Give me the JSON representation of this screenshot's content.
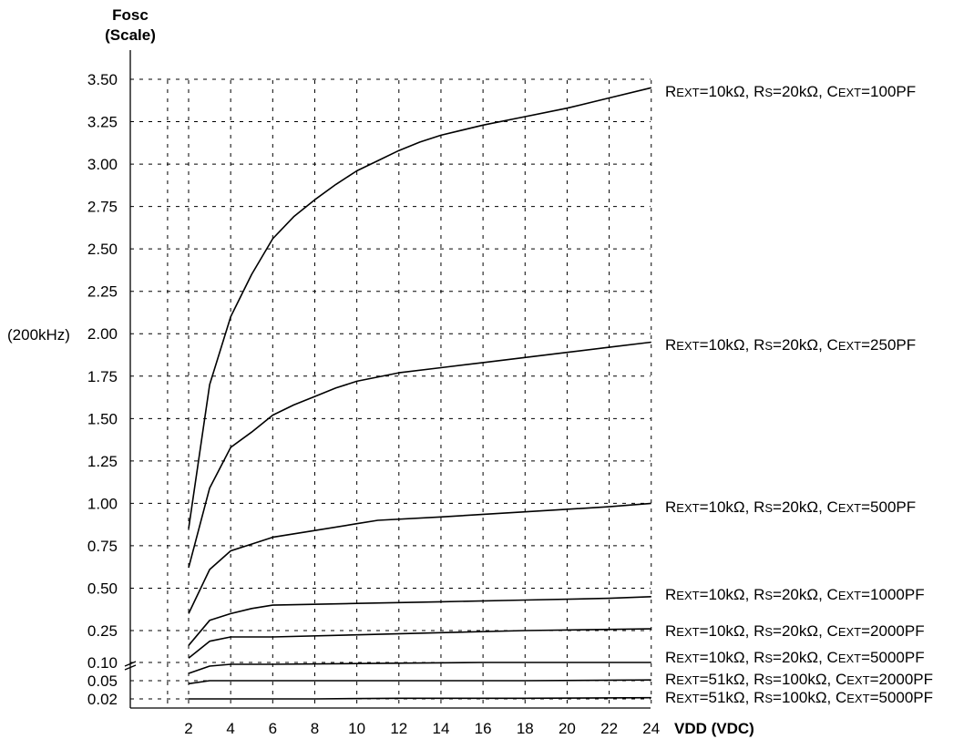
{
  "chart_data": {
    "type": "line",
    "ylabel": "Fosc",
    "ylabel_sub": "(Scale)",
    "y_unit_note": "(200kHz)",
    "xlabel": "VDD (VDC)",
    "xlim": [
      0,
      24
    ],
    "ylim": [
      0,
      3.5
    ],
    "grid": true,
    "y_axis_break": "between 0.10 and 0.25",
    "x_ticks": [
      2,
      4,
      6,
      8,
      10,
      12,
      14,
      16,
      18,
      20,
      22,
      24
    ],
    "y_ticks": [
      "3.50",
      "3.25",
      "3.00",
      "2.75",
      "2.50",
      "2.25",
      "2.00",
      "1.75",
      "1.50",
      "1.25",
      "1.00",
      "0.75",
      "0.50",
      "0.25",
      "0.10",
      "0.05",
      "0.02"
    ],
    "series": [
      {
        "label": [
          [
            "R",
            "EXT",
            "=10kΩ, R",
            "S",
            "=20kΩ, C",
            "EXT",
            "=100PF"
          ]
        ],
        "x": [
          2,
          3,
          4,
          5,
          6,
          7,
          8,
          9,
          10,
          11,
          12,
          13,
          14,
          16,
          18,
          20,
          22,
          24
        ],
        "y": [
          0.85,
          1.7,
          2.1,
          2.35,
          2.56,
          2.69,
          2.79,
          2.88,
          2.96,
          3.02,
          3.08,
          3.13,
          3.17,
          3.23,
          3.28,
          3.33,
          3.39,
          3.45
        ]
      },
      {
        "label": [
          [
            "R",
            "EXT",
            "=10kΩ, R",
            "S",
            "=20kΩ, C",
            "EXT",
            "=250PF"
          ]
        ],
        "x": [
          2,
          3,
          4,
          5,
          6,
          7,
          8,
          9,
          10,
          12,
          14,
          16,
          18,
          20,
          22,
          24
        ],
        "y": [
          0.62,
          1.09,
          1.33,
          1.42,
          1.52,
          1.58,
          1.63,
          1.68,
          1.72,
          1.77,
          1.8,
          1.83,
          1.86,
          1.89,
          1.92,
          1.95
        ]
      },
      {
        "label": [
          [
            "R",
            "EXT",
            "=10kΩ, R",
            "S",
            "=20kΩ, C",
            "EXT",
            "=500PF"
          ]
        ],
        "x": [
          2,
          3,
          4,
          5,
          6,
          8,
          10,
          11,
          14,
          18,
          22,
          24
        ],
        "y": [
          0.35,
          0.61,
          0.72,
          0.76,
          0.8,
          0.84,
          0.88,
          0.9,
          0.92,
          0.95,
          0.98,
          1.0
        ]
      },
      {
        "label": [
          [
            "R",
            "EXT",
            "=10kΩ, R",
            "S",
            "=20kΩ, C",
            "EXT",
            "=1000PF"
          ]
        ],
        "x": [
          2,
          3,
          4,
          5,
          6,
          10,
          14,
          18,
          22,
          24
        ],
        "y": [
          0.18,
          0.31,
          0.35,
          0.38,
          0.4,
          0.41,
          0.42,
          0.43,
          0.44,
          0.45
        ]
      },
      {
        "label": [
          [
            "R",
            "EXT",
            "=10kΩ, R",
            "S",
            "=20kΩ, C",
            "EXT",
            "=2000PF"
          ]
        ],
        "x": [
          2,
          3,
          4,
          6,
          10,
          14,
          18,
          24
        ],
        "y": [
          0.12,
          0.2,
          0.22,
          0.22,
          0.23,
          0.24,
          0.25,
          0.26
        ]
      },
      {
        "label": [
          [
            "R",
            "EXT",
            "=10kΩ, R",
            "S",
            "=20kΩ, C",
            "EXT",
            "=5000PF"
          ]
        ],
        "x": [
          2,
          3,
          4,
          6,
          10,
          16,
          24
        ],
        "y": [
          0.07,
          0.09,
          0.095,
          0.095,
          0.097,
          0.1,
          0.1
        ]
      },
      {
        "label": [
          [
            "R",
            "EXT",
            "=51kΩ, R",
            "S",
            "=100kΩ, C",
            "EXT",
            "=2000PF"
          ]
        ],
        "x": [
          2,
          3,
          4,
          6,
          12,
          18,
          24
        ],
        "y": [
          0.045,
          0.05,
          0.05,
          0.05,
          0.05,
          0.05,
          0.052
        ]
      },
      {
        "label": [
          [
            "R",
            "EXT",
            "=51kΩ, R",
            "S",
            "=100kΩ, C",
            "EXT",
            "=5000PF"
          ]
        ],
        "x": [
          2,
          4,
          8,
          12,
          18,
          24
        ],
        "y": [
          0.02,
          0.02,
          0.02,
          0.021,
          0.021,
          0.022
        ]
      }
    ]
  }
}
